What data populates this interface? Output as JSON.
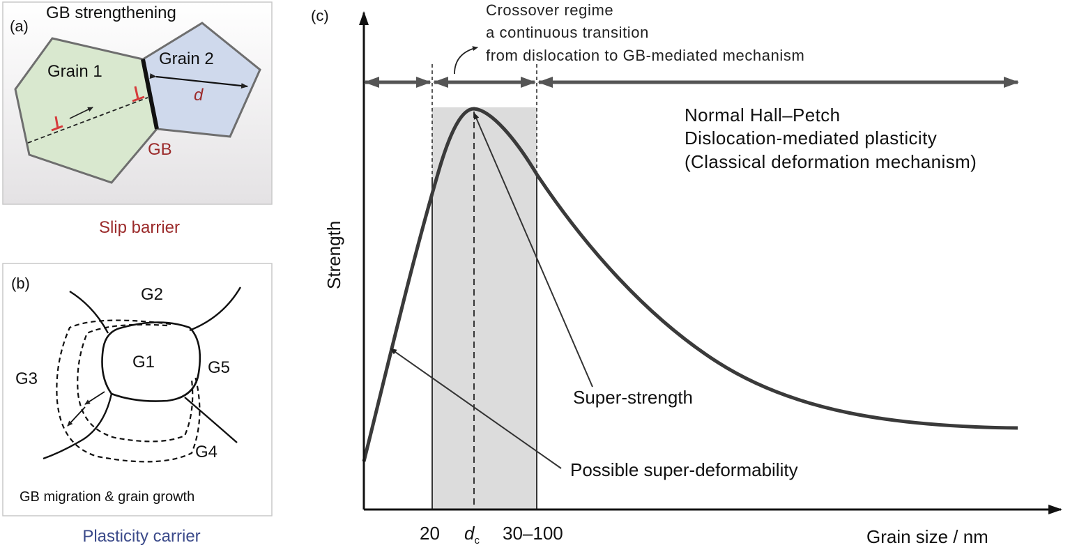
{
  "panel_a": {
    "label": "(a)",
    "title": "GB strengthening",
    "grain1": "Grain 1",
    "grain2": "Grain 2",
    "d_label": "d",
    "gb_label": "GB",
    "caption": "Slip barrier"
  },
  "panel_b": {
    "label": "(b)",
    "g1": "G1",
    "g2": "G2",
    "g3": "G3",
    "g4": "G4",
    "g5": "G5",
    "inner_caption": "GB migration & grain growth",
    "caption": "Plasticity carrier"
  },
  "panel_c": {
    "label": "(c)",
    "crossover_line1": "Crossover regime",
    "crossover_line2": "a continuous transition",
    "crossover_line3": "from dislocation to GB-mediated mechanism",
    "hp_line1": "Normal Hall–Petch",
    "hp_line2": "Dislocation-mediated plasticity",
    "hp_line3": "(Classical deformation mechanism)",
    "super_strength": "Super-strength",
    "super_deform": "Possible super-deformability",
    "ylabel": "Strength",
    "xlabel": "Grain size / nm",
    "tick_20": "20",
    "tick_dc_main": "d",
    "tick_dc_sub": "c",
    "tick_30_100": "30–100"
  },
  "colors": {
    "slip_red": "#9b2a2a",
    "carrier_blue": "#3b4a8a",
    "grain1_fill": "#d9e8cf",
    "grain2_fill": "#cfd9ec",
    "shade": "#dcdcdc",
    "curve": "#3a3a3a"
  }
}
